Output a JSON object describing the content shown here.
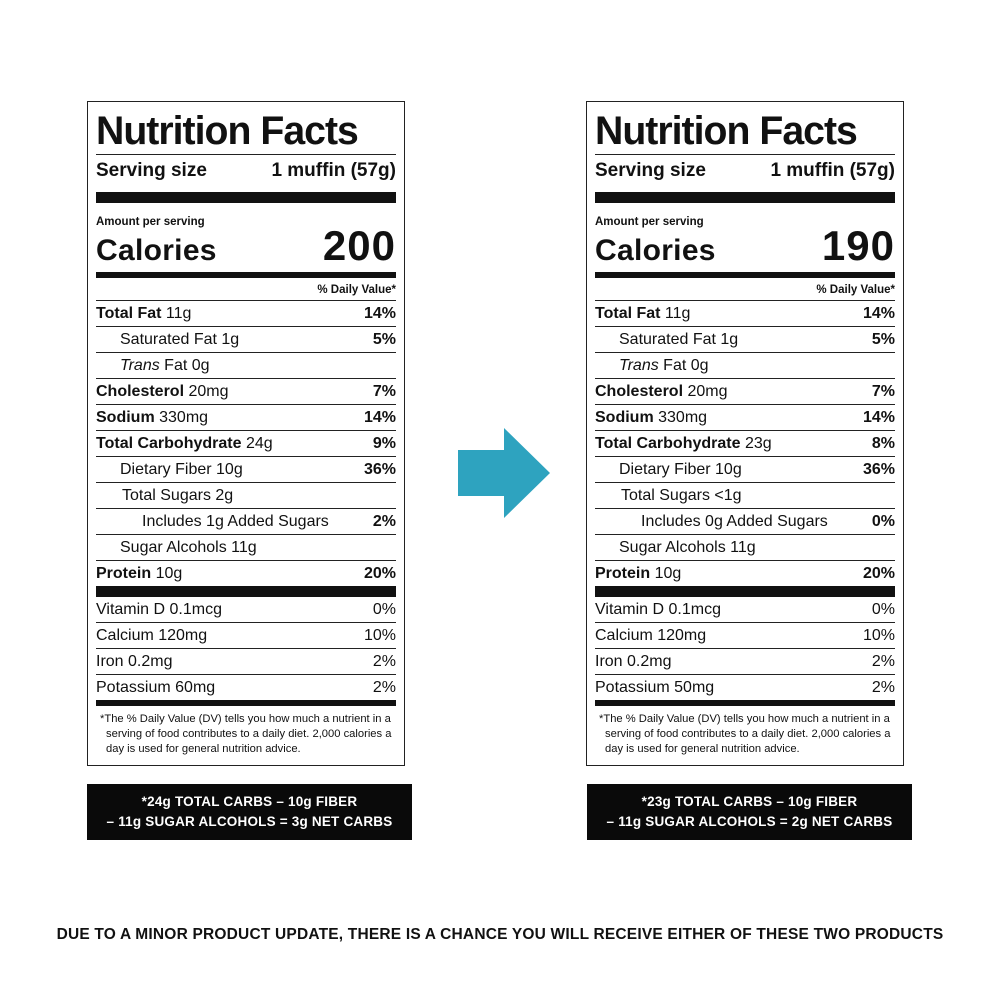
{
  "notice": "DUE TO A MINOR PRODUCT UPDATE, THERE IS A CHANCE YOU WILL RECEIVE EITHER OF THESE TWO PRODUCTS",
  "arrow_color": "#2ea3bf",
  "labels": [
    {
      "title": "Nutrition Facts",
      "serving_label": "Serving size",
      "serving_value": "1 muffin (57g)",
      "amount_per_serving": "Amount per serving",
      "calories_label": "Calories",
      "calories_value": "200",
      "dv_header": "% Daily Value*",
      "rows": [
        {
          "bold": "Total Fat",
          "plain": " 11g",
          "pct": "14%"
        },
        {
          "bold": "",
          "plain": "Saturated Fat 1g",
          "pct": "5%"
        },
        {
          "italic": "Trans",
          "plain": " Fat 0g",
          "pct": ""
        },
        {
          "bold": "Cholesterol",
          "plain": " 20mg",
          "pct": "7%"
        },
        {
          "bold": "Sodium",
          "plain": " 330mg",
          "pct": "14%"
        },
        {
          "bold": "Total Carbohydrate",
          "plain": " 24g",
          "pct": "9%"
        },
        {
          "bold": "",
          "plain": "Dietary Fiber 10g",
          "pct": "36%"
        },
        {
          "bold": "",
          "plain": "Total Sugars 2g",
          "pct": ""
        },
        {
          "bold": "",
          "plain": "Includes 1g Added Sugars",
          "pct": "2%"
        },
        {
          "bold": "",
          "plain": "Sugar Alcohols 11g",
          "pct": ""
        },
        {
          "bold": "Protein",
          "plain": " 10g",
          "pct": "20%"
        }
      ],
      "vitamins": [
        {
          "name": "Vitamin D 0.1mcg",
          "pct": "0%"
        },
        {
          "name": "Calcium 120mg",
          "pct": "10%"
        },
        {
          "name": "Iron 0.2mg",
          "pct": "2%"
        },
        {
          "name": "Potassium 60mg",
          "pct": "2%"
        }
      ],
      "footnote": "*The % Daily Value (DV) tells you how much a nutrient in a serving of food contributes to a daily diet. 2,000 calories a day is used for general nutrition advice.",
      "net_line1": "*24g TOTAL CARBS – 10g FIBER",
      "net_line2": "– 11g SUGAR ALCOHOLS = 3g NET CARBS"
    },
    {
      "title": "Nutrition Facts",
      "serving_label": "Serving size",
      "serving_value": "1 muffin (57g)",
      "amount_per_serving": "Amount per serving",
      "calories_label": "Calories",
      "calories_value": "190",
      "dv_header": "% Daily Value*",
      "rows": [
        {
          "bold": "Total Fat",
          "plain": " 11g",
          "pct": "14%"
        },
        {
          "bold": "",
          "plain": "Saturated Fat 1g",
          "pct": "5%"
        },
        {
          "italic": "Trans",
          "plain": " Fat 0g",
          "pct": ""
        },
        {
          "bold": "Cholesterol",
          "plain": " 20mg",
          "pct": "7%"
        },
        {
          "bold": "Sodium",
          "plain": " 330mg",
          "pct": "14%"
        },
        {
          "bold": "Total Carbohydrate",
          "plain": " 23g",
          "pct": "8%"
        },
        {
          "bold": "",
          "plain": "Dietary Fiber 10g",
          "pct": "36%"
        },
        {
          "bold": "",
          "plain": "Total Sugars <1g",
          "pct": ""
        },
        {
          "bold": "",
          "plain": "Includes 0g Added Sugars",
          "pct": "0%"
        },
        {
          "bold": "",
          "plain": "Sugar Alcohols 11g",
          "pct": ""
        },
        {
          "bold": "Protein",
          "plain": " 10g",
          "pct": "20%"
        }
      ],
      "vitamins": [
        {
          "name": "Vitamin D 0.1mcg",
          "pct": "0%"
        },
        {
          "name": "Calcium 120mg",
          "pct": "10%"
        },
        {
          "name": "Iron 0.2mg",
          "pct": "2%"
        },
        {
          "name": "Potassium 50mg",
          "pct": "2%"
        }
      ],
      "footnote": "*The % Daily Value (DV) tells you how much a nutrient in a serving of food contributes to a daily diet. 2,000 calories a day is used for general nutrition advice.",
      "net_line1": "*23g TOTAL CARBS – 10g FIBER",
      "net_line2": "– 11g SUGAR ALCOHOLS = 2g NET CARBS"
    }
  ]
}
